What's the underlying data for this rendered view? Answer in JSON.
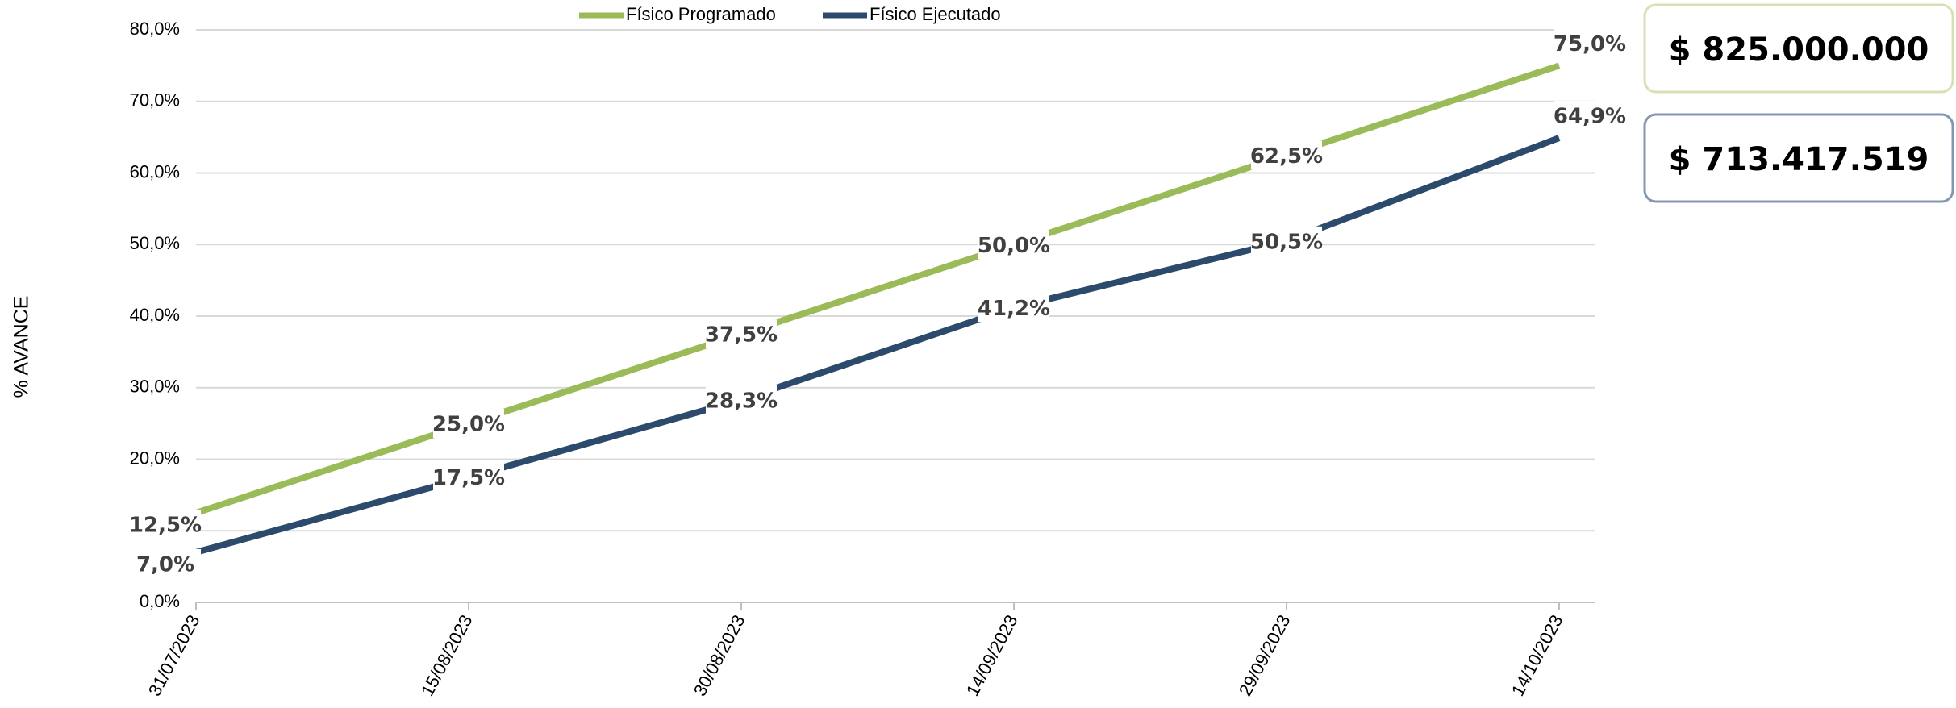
{
  "chart_data": {
    "type": "line",
    "y_label": "% AVANCE",
    "categories": [
      "31/07/2023",
      "15/08/2023",
      "30/08/2023",
      "14/09/2023",
      "29/09/2023",
      "14/10/2023"
    ],
    "series": [
      {
        "name": "Físico Programado",
        "color": "#9bbb59",
        "values": [
          12.5,
          25,
          37.5,
          50,
          62.5,
          75
        ],
        "value_labels": [
          "12,5%",
          "25,0%",
          "37,5%",
          "50,0%",
          "62,5%",
          "75,0%"
        ]
      },
      {
        "name": "Físico Ejecutado",
        "color": "#2c4a6b",
        "values": [
          7.0,
          17.5,
          28.3,
          41.2,
          50.5,
          64.9
        ],
        "value_labels": [
          "7,0%",
          "17,5%",
          "28,3%",
          "41,2%",
          "50,5%",
          "64,9%"
        ]
      }
    ],
    "ylim": [
      0,
      80
    ],
    "yticks": [
      {
        "value": 0,
        "label": "0,0%"
      },
      {
        "value": 10,
        "label": "10,0%"
      },
      {
        "value": 20,
        "label": "20,0%"
      },
      {
        "value": 30,
        "label": "30,0%"
      },
      {
        "value": 40,
        "label": "40,0%"
      },
      {
        "value": 50,
        "label": "50,0%"
      },
      {
        "value": 60,
        "label": "60,0%"
      },
      {
        "value": 70,
        "label": "70,0%"
      },
      {
        "value": 80,
        "label": "80,0%"
      }
    ],
    "grid": true,
    "legend": "top",
    "annotations": [
      {
        "text": "$ 825.000.000",
        "color": "#9bbb59"
      },
      {
        "text": "$ 713.417.519",
        "color": "#2c4a6b"
      }
    ]
  }
}
